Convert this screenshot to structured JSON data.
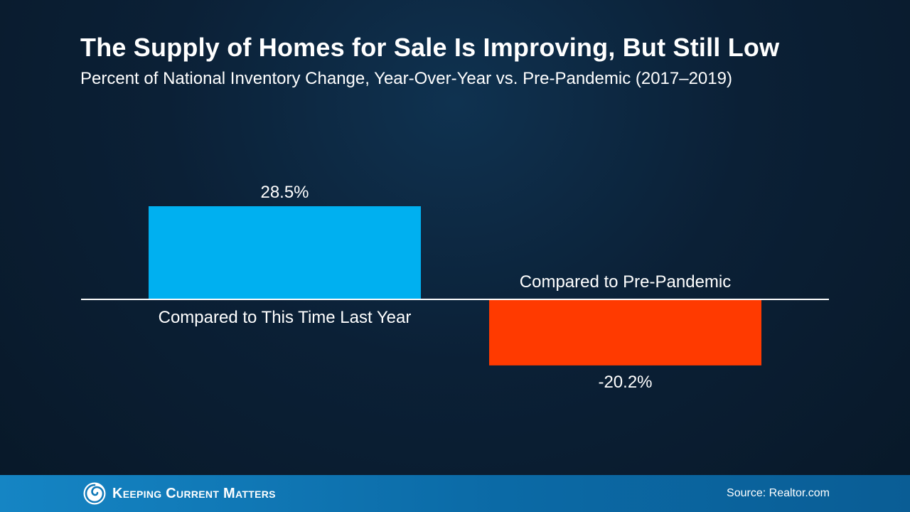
{
  "header": {
    "title": "The Supply of Homes for Sale Is Improving, But Still Low",
    "subtitle": "Percent of National Inventory Change, Year-Over-Year vs. Pre-Pandemic (2017–2019)"
  },
  "chart_data": {
    "type": "bar",
    "categories": [
      "Compared to This Time Last Year",
      "Compared to Pre-Pandemic"
    ],
    "values": [
      28.5,
      -20.2
    ],
    "value_labels": [
      "28.5%",
      "-20.2%"
    ],
    "colors": [
      "#00b0f0",
      "#ff3a00"
    ],
    "grid": false,
    "legend": "none"
  },
  "footer": {
    "logo_text": "Keeping Current Matters",
    "source": "Source: Realtor.com"
  },
  "colors": {
    "background": "#0b2036",
    "footer": "#0f78b8",
    "axis": "#ffffff",
    "text": "#ffffff"
  }
}
